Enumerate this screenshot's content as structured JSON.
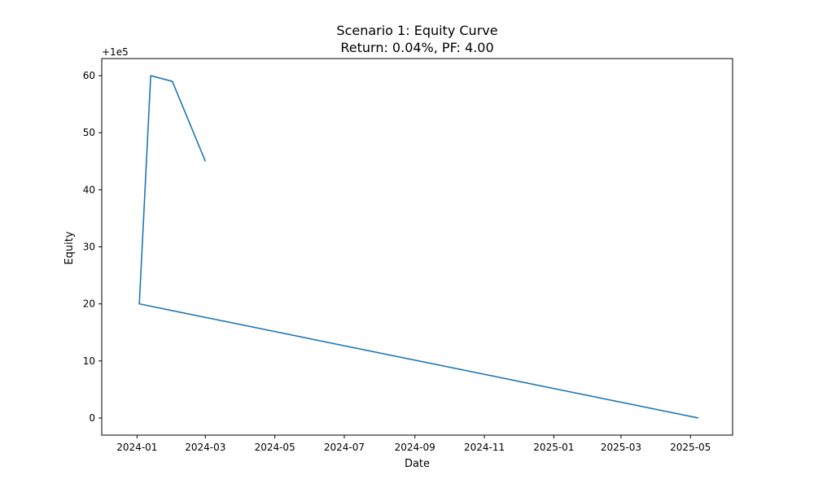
{
  "chart_data": {
    "type": "line",
    "title": "Scenario 1: Equity Curve",
    "subtitle": "Return: 0.04%, PF: 4.00",
    "xlabel": "Date",
    "ylabel": "Equity",
    "y_offset_label": "+1e5",
    "x_axis_type": "date",
    "xlim": [
      "2023-12-01",
      "2025-06-07"
    ],
    "ylim": [
      -3,
      63
    ],
    "x_ticks": [
      "2024-01-01",
      "2024-03-01",
      "2024-05-01",
      "2024-07-01",
      "2024-09-01",
      "2024-11-01",
      "2025-01-01",
      "2025-03-01",
      "2025-05-01"
    ],
    "x_tick_labels": [
      "2024-01",
      "2024-03",
      "2024-05",
      "2024-07",
      "2024-09",
      "2024-11",
      "2025-01",
      "2025-03",
      "2025-05"
    ],
    "y_ticks": [
      0,
      10,
      20,
      30,
      40,
      50,
      60
    ],
    "y_tick_labels": [
      "0",
      "10",
      "20",
      "30",
      "40",
      "50",
      "60"
    ],
    "grid": false,
    "legend": "none",
    "series": [
      {
        "color": "#1f77b4",
        "x": [
          "2025-05-08",
          "2024-01-03",
          "2024-01-13",
          "2024-02-01",
          "2024-03-01"
        ],
        "values": [
          0,
          20,
          60,
          59,
          45
        ]
      }
    ]
  }
}
